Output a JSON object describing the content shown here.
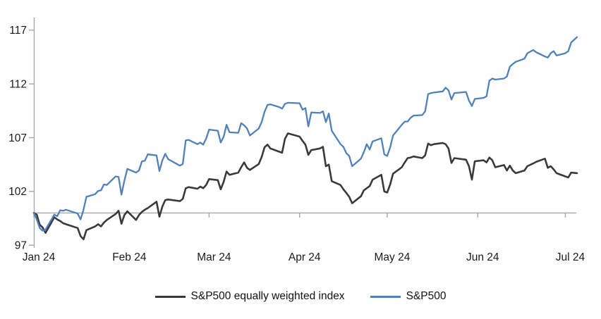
{
  "colors": {
    "background": "#ffffff",
    "axis": "#a6a6a6",
    "text": "#1a1a1a",
    "equal_weight_line": "#3a3a3a",
    "sp500_line": "#4f81bd"
  },
  "chart_data": {
    "type": "line",
    "title": "",
    "x_axis": {
      "tick_labels": [
        "Jan 24",
        "Feb 24",
        "Mar 24",
        "Apr 24",
        "May 24",
        "Jun 24",
        "Jul 24"
      ],
      "tick_dates": [
        "2024-01-01",
        "2024-02-01",
        "2024-03-01",
        "2024-04-01",
        "2024-05-01",
        "2024-06-01",
        "2024-07-01"
      ],
      "range": [
        "2024-01-01",
        "2024-07-05"
      ]
    },
    "y_axis": {
      "ticks": [
        97,
        102,
        107,
        112,
        117
      ],
      "range": [
        97,
        118
      ],
      "baseline": 100
    },
    "grid": "baseline-only",
    "legend_position": "bottom",
    "x": [
      "2024-01-01",
      "2024-01-02",
      "2024-01-03",
      "2024-01-04",
      "2024-01-05",
      "2024-01-08",
      "2024-01-09",
      "2024-01-10",
      "2024-01-11",
      "2024-01-12",
      "2024-01-16",
      "2024-01-17",
      "2024-01-18",
      "2024-01-19",
      "2024-01-22",
      "2024-01-23",
      "2024-01-24",
      "2024-01-25",
      "2024-01-26",
      "2024-01-29",
      "2024-01-30",
      "2024-01-31",
      "2024-02-01",
      "2024-02-02",
      "2024-02-05",
      "2024-02-06",
      "2024-02-07",
      "2024-02-08",
      "2024-02-09",
      "2024-02-12",
      "2024-02-13",
      "2024-02-14",
      "2024-02-15",
      "2024-02-16",
      "2024-02-20",
      "2024-02-21",
      "2024-02-22",
      "2024-02-23",
      "2024-02-26",
      "2024-02-27",
      "2024-02-28",
      "2024-02-29",
      "2024-03-01",
      "2024-03-04",
      "2024-03-05",
      "2024-03-06",
      "2024-03-07",
      "2024-03-08",
      "2024-03-11",
      "2024-03-12",
      "2024-03-13",
      "2024-03-14",
      "2024-03-15",
      "2024-03-18",
      "2024-03-19",
      "2024-03-20",
      "2024-03-21",
      "2024-03-22",
      "2024-03-25",
      "2024-03-26",
      "2024-03-27",
      "2024-03-28",
      "2024-04-01",
      "2024-04-02",
      "2024-04-03",
      "2024-04-04",
      "2024-04-05",
      "2024-04-08",
      "2024-04-09",
      "2024-04-10",
      "2024-04-11",
      "2024-04-12",
      "2024-04-15",
      "2024-04-16",
      "2024-04-17",
      "2024-04-18",
      "2024-04-19",
      "2024-04-22",
      "2024-04-23",
      "2024-04-24",
      "2024-04-25",
      "2024-04-26",
      "2024-04-29",
      "2024-04-30",
      "2024-05-01",
      "2024-05-02",
      "2024-05-03",
      "2024-05-06",
      "2024-05-07",
      "2024-05-08",
      "2024-05-09",
      "2024-05-10",
      "2024-05-13",
      "2024-05-14",
      "2024-05-15",
      "2024-05-16",
      "2024-05-17",
      "2024-05-20",
      "2024-05-21",
      "2024-05-22",
      "2024-05-23",
      "2024-05-24",
      "2024-05-28",
      "2024-05-29",
      "2024-05-30",
      "2024-05-31",
      "2024-06-03",
      "2024-06-04",
      "2024-06-05",
      "2024-06-06",
      "2024-06-07",
      "2024-06-10",
      "2024-06-11",
      "2024-06-12",
      "2024-06-13",
      "2024-06-14",
      "2024-06-17",
      "2024-06-18",
      "2024-06-20",
      "2024-06-21",
      "2024-06-24",
      "2024-06-25",
      "2024-06-26",
      "2024-06-27",
      "2024-06-28",
      "2024-07-01",
      "2024-07-02",
      "2024-07-03",
      "2024-07-05"
    ],
    "series": [
      {
        "name": "S&P500 equally weighted index",
        "color": "#3a3a3a",
        "values": [
          100,
          99.85,
          98.9,
          98.65,
          98.15,
          99.6,
          99.4,
          99.25,
          99.05,
          98.95,
          98.6,
          97.85,
          97.55,
          98.4,
          98.75,
          98.95,
          98.75,
          99.1,
          99.35,
          99.9,
          100.2,
          99.0,
          99.8,
          100.15,
          99.35,
          99.8,
          100.1,
          100.3,
          100.45,
          101.05,
          99.65,
          100.6,
          101.2,
          101.25,
          101.1,
          101.3,
          102.3,
          102.4,
          102.25,
          102.45,
          102.3,
          102.6,
          103.15,
          103.05,
          102.2,
          102.9,
          103.85,
          103.55,
          103.75,
          104.25,
          104.7,
          104.2,
          104.0,
          104.55,
          105.2,
          106.1,
          106.35,
          106.0,
          105.7,
          105.6,
          106.9,
          107.4,
          107.1,
          106.7,
          106.35,
          105.4,
          105.85,
          106.0,
          106.15,
          104.35,
          104.5,
          102.95,
          102.6,
          102.2,
          101.85,
          101.5,
          100.9,
          101.55,
          102.1,
          102.3,
          102.5,
          103.1,
          103.55,
          102.0,
          101.9,
          102.65,
          103.65,
          104.25,
          104.7,
          105.1,
          105.15,
          105.25,
          105.1,
          105.35,
          106.45,
          106.3,
          106.4,
          106.5,
          106.4,
          106.0,
          104.65,
          105.1,
          104.95,
          104.35,
          103.1,
          104.8,
          104.9,
          104.7,
          105.15,
          104.9,
          104.25,
          104.45,
          103.95,
          104.4,
          103.95,
          103.7,
          103.95,
          104.35,
          104.6,
          104.75,
          105.05,
          104.2,
          104.35,
          104.05,
          103.7,
          103.4,
          103.3,
          103.75,
          103.7
        ]
      },
      {
        "name": "S&P500",
        "color": "#4f81bd",
        "values": [
          100,
          99.4,
          98.6,
          98.35,
          98.45,
          99.85,
          99.7,
          100.25,
          100.2,
          100.3,
          99.95,
          99.4,
          100.3,
          101.5,
          101.75,
          102.05,
          102.1,
          102.65,
          102.6,
          103.4,
          103.35,
          101.7,
          103.0,
          104.1,
          103.75,
          103.95,
          104.8,
          104.85,
          105.45,
          105.35,
          103.9,
          104.9,
          105.5,
          105.0,
          104.4,
          104.55,
          106.75,
          106.8,
          106.4,
          106.55,
          106.35,
          106.9,
          107.75,
          107.65,
          106.55,
          107.1,
          108.2,
          107.5,
          107.45,
          108.35,
          108.15,
          107.85,
          107.2,
          107.85,
          108.45,
          109.4,
          110.05,
          110.1,
          109.85,
          109.7,
          110.15,
          110.25,
          110.2,
          109.6,
          109.75,
          108.05,
          109.35,
          109.3,
          109.45,
          108.45,
          109.25,
          107.65,
          106.4,
          106.15,
          105.55,
          105.3,
          104.35,
          105.05,
          105.65,
          106.4,
          105.9,
          106.65,
          106.95,
          105.45,
          105.3,
          106.1,
          107.2,
          108.2,
          108.5,
          108.5,
          108.85,
          109.05,
          109.1,
          109.45,
          111.05,
          111.15,
          111.2,
          111.3,
          111.65,
          111.4,
          110.55,
          111.15,
          111.25,
          110.45,
          109.95,
          110.6,
          110.7,
          110.85,
          112.3,
          112.5,
          112.4,
          112.5,
          112.7,
          113.6,
          113.85,
          114.05,
          114.35,
          114.85,
          115.15,
          114.95,
          114.55,
          114.45,
          114.85,
          115.05,
          114.65,
          114.85,
          115.05,
          115.85,
          116.35
        ]
      }
    ]
  }
}
